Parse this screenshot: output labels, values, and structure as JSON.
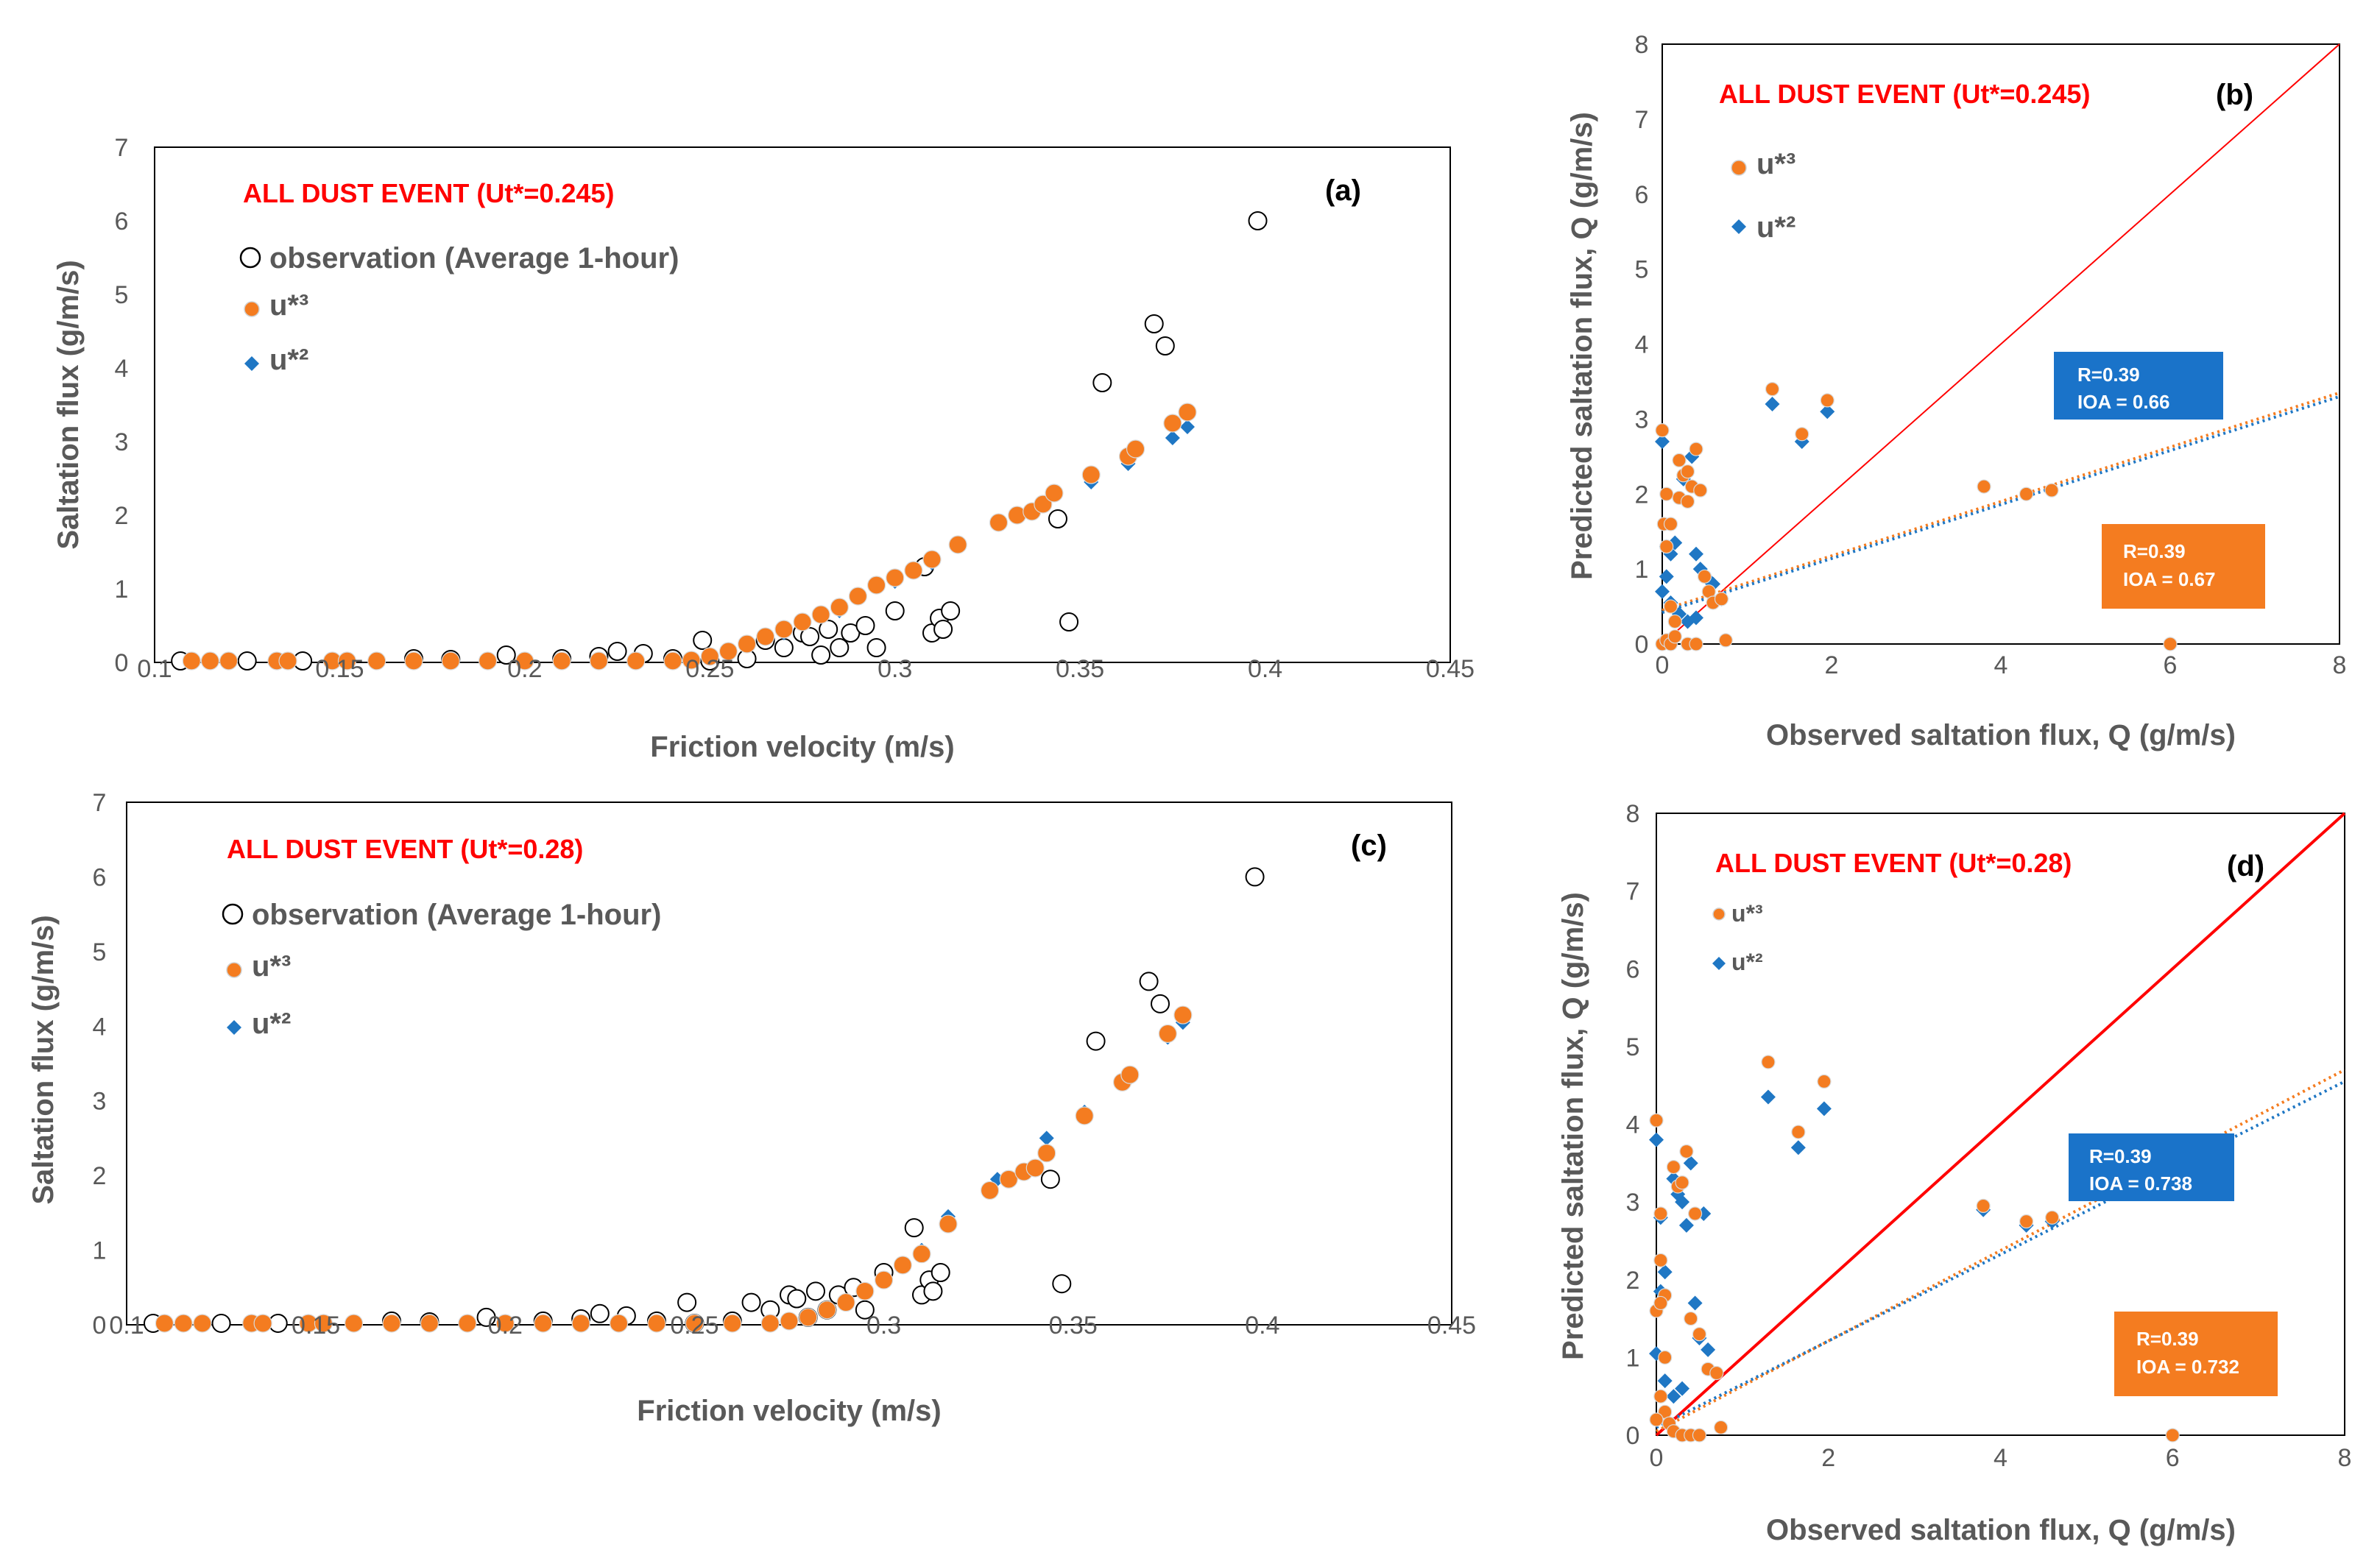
{
  "figure": {
    "colors": {
      "observation_edge": "#000000",
      "u3": "#f47c20",
      "u2": "#1f77c4",
      "one_to_one": "#ff0000",
      "stat_box_u2": "#1a73c9",
      "stat_box_u3": "#f47c20"
    },
    "legend": {
      "observation": "observation (Average 1-hour)",
      "u3": "u*³",
      "u2": "u*²"
    }
  },
  "chart_data": [
    {
      "panel": "(a)",
      "type": "scatter",
      "annotation": "ALL DUST EVENT (Ut*=0.245)",
      "xlabel": "Friction velocity (m/s)",
      "ylabel": "Saltation flux (g/m/s)",
      "xlim": [
        0.1,
        0.45
      ],
      "ylim": [
        0,
        7
      ],
      "xticks": [
        "0.1",
        "0.15",
        "0.2",
        "0.25",
        "0.3",
        "0.35",
        "0.4",
        "0.45"
      ],
      "yticks": [
        "0",
        "1",
        "2",
        "3",
        "4",
        "5",
        "6",
        "7"
      ],
      "series": [
        {
          "name": "observation (Average 1-hour)",
          "marker": "open-circle",
          "x": [
            0.107,
            0.125,
            0.14,
            0.17,
            0.18,
            0.195,
            0.21,
            0.22,
            0.225,
            0.232,
            0.24,
            0.248,
            0.25,
            0.26,
            0.265,
            0.27,
            0.275,
            0.277,
            0.28,
            0.282,
            0.285,
            0.288,
            0.292,
            0.295,
            0.3,
            0.308,
            0.31,
            0.312,
            0.313,
            0.315,
            0.344,
            0.347,
            0.356,
            0.37,
            0.373,
            0.398
          ],
          "y": [
            0.02,
            0.02,
            0.02,
            0.05,
            0.04,
            0.1,
            0.05,
            0.08,
            0.15,
            0.12,
            0.05,
            0.3,
            0.02,
            0.05,
            0.3,
            0.2,
            0.4,
            0.35,
            0.1,
            0.45,
            0.2,
            0.4,
            0.5,
            0.2,
            0.7,
            1.3,
            0.4,
            0.6,
            0.45,
            0.7,
            1.95,
            0.55,
            3.8,
            4.6,
            4.3,
            6.0
          ]
        },
        {
          "name": "u*³",
          "marker": "circle",
          "x": [
            0.11,
            0.115,
            0.12,
            0.133,
            0.136,
            0.148,
            0.152,
            0.16,
            0.17,
            0.18,
            0.19,
            0.2,
            0.21,
            0.22,
            0.23,
            0.24,
            0.245,
            0.25,
            0.255,
            0.26,
            0.265,
            0.27,
            0.275,
            0.28,
            0.285,
            0.29,
            0.295,
            0.3,
            0.305,
            0.31,
            0.317,
            0.328,
            0.333,
            0.337,
            0.34,
            0.343,
            0.353,
            0.363,
            0.365,
            0.375,
            0.379
          ],
          "y": [
            0.02,
            0.02,
            0.02,
            0.02,
            0.02,
            0.02,
            0.02,
            0.02,
            0.02,
            0.02,
            0.02,
            0.02,
            0.02,
            0.02,
            0.02,
            0.02,
            0.03,
            0.08,
            0.15,
            0.25,
            0.35,
            0.45,
            0.55,
            0.65,
            0.75,
            0.9,
            1.05,
            1.15,
            1.25,
            1.4,
            1.6,
            1.9,
            2.0,
            2.05,
            2.15,
            2.3,
            2.55,
            2.8,
            2.9,
            3.25,
            3.4
          ]
        },
        {
          "name": "u*²",
          "marker": "diamond",
          "x": [
            0.12,
            0.18,
            0.24,
            0.255,
            0.27,
            0.285,
            0.3,
            0.31,
            0.317,
            0.337,
            0.343,
            0.353,
            0.363,
            0.375,
            0.379
          ],
          "y": [
            0.02,
            0.02,
            0.02,
            0.12,
            0.4,
            0.7,
            1.1,
            1.35,
            1.6,
            2.05,
            2.3,
            2.45,
            2.7,
            3.05,
            3.2
          ]
        }
      ]
    },
    {
      "panel": "(b)",
      "type": "scatter",
      "annotation": "ALL DUST EVENT (Ut*=0.245)",
      "xlabel": "Observed saltation flux, Q (g/m/s)",
      "ylabel": "Predicted saltation flux, Q (g/m/s)",
      "xlim": [
        0,
        8
      ],
      "ylim": [
        0,
        8
      ],
      "xticks": [
        "0",
        "2",
        "4",
        "6",
        "8"
      ],
      "yticks": [
        "0",
        "1",
        "2",
        "3",
        "4",
        "5",
        "6",
        "7",
        "8"
      ],
      "stats_u2": {
        "r": "R=0.39",
        "ioa": "IOA = 0.66"
      },
      "stats_u3": {
        "r": "R=0.39",
        "ioa": "IOA = 0.67"
      },
      "trend_u3": [
        [
          0,
          0.45
        ],
        [
          8,
          3.35
        ]
      ],
      "trend_u2": [
        [
          0,
          0.42
        ],
        [
          8,
          3.3
        ]
      ],
      "series": [
        {
          "name": "u*³",
          "marker": "circle",
          "x": [
            0.0,
            0.02,
            0.05,
            0.05,
            0.1,
            0.1,
            0.15,
            0.2,
            0.25,
            0.3,
            0.35,
            0.4,
            0.45,
            0.5,
            0.55,
            0.6,
            0.7,
            0.75,
            0.0,
            0.05,
            0.1,
            0.15,
            0.3,
            0.4,
            1.3,
            1.65,
            1.95,
            3.8,
            4.3,
            4.6,
            6.0,
            0.2,
            0.3
          ],
          "y": [
            2.85,
            1.6,
            2.0,
            1.3,
            1.6,
            0.5,
            0.3,
            1.95,
            2.25,
            1.9,
            2.1,
            2.6,
            2.05,
            0.9,
            0.7,
            0.55,
            0.6,
            0.05,
            0.0,
            0.05,
            0.0,
            0.1,
            0.0,
            0.0,
            3.4,
            2.8,
            3.25,
            2.1,
            2.0,
            2.05,
            0.0,
            2.45,
            2.3
          ]
        },
        {
          "name": "u*²",
          "marker": "diamond",
          "x": [
            0.0,
            0.05,
            0.1,
            0.15,
            0.25,
            0.35,
            0.4,
            0.45,
            0.55,
            0.6,
            0.7,
            0.0,
            0.1,
            0.2,
            0.3,
            0.4,
            1.3,
            1.65,
            1.95,
            0.05
          ],
          "y": [
            2.7,
            1.3,
            1.2,
            1.35,
            2.2,
            2.5,
            1.2,
            1.0,
            0.85,
            0.8,
            0.6,
            0.7,
            0.55,
            0.4,
            0.3,
            0.35,
            3.2,
            2.7,
            3.1,
            0.9
          ]
        }
      ]
    },
    {
      "panel": "(c)",
      "type": "scatter",
      "annotation": "ALL DUST EVENT (Ut*=0.28)",
      "xlabel": "Friction velocity (m/s)",
      "ylabel": "Saltation flux (g/m/s)",
      "xlim": [
        0.1,
        0.45
      ],
      "ylim": [
        0,
        7
      ],
      "xticks": [
        "0.1",
        "0.15",
        "0.2",
        "0.25",
        "0.3",
        "0.35",
        "0.4",
        "0.45"
      ],
      "yticks": [
        "0",
        "1",
        "2",
        "3",
        "4",
        "5",
        "6",
        "7"
      ],
      "series": [
        {
          "name": "observation (Average 1-hour)",
          "marker": "open-circle",
          "x": [
            0.107,
            0.125,
            0.14,
            0.17,
            0.18,
            0.195,
            0.21,
            0.22,
            0.225,
            0.232,
            0.24,
            0.248,
            0.25,
            0.26,
            0.265,
            0.27,
            0.275,
            0.277,
            0.28,
            0.282,
            0.285,
            0.288,
            0.292,
            0.295,
            0.3,
            0.308,
            0.31,
            0.312,
            0.313,
            0.315,
            0.344,
            0.347,
            0.356,
            0.37,
            0.373,
            0.398
          ],
          "y": [
            0.02,
            0.02,
            0.02,
            0.05,
            0.04,
            0.1,
            0.05,
            0.08,
            0.15,
            0.12,
            0.05,
            0.3,
            0.02,
            0.05,
            0.3,
            0.2,
            0.4,
            0.35,
            0.1,
            0.45,
            0.2,
            0.4,
            0.5,
            0.2,
            0.7,
            1.3,
            0.4,
            0.6,
            0.45,
            0.7,
            1.95,
            0.55,
            3.8,
            4.6,
            4.3,
            6.0
          ]
        },
        {
          "name": "u*³",
          "marker": "circle",
          "x": [
            0.11,
            0.115,
            0.12,
            0.133,
            0.136,
            0.148,
            0.152,
            0.16,
            0.17,
            0.18,
            0.19,
            0.2,
            0.21,
            0.22,
            0.23,
            0.24,
            0.25,
            0.26,
            0.27,
            0.275,
            0.28,
            0.285,
            0.29,
            0.295,
            0.3,
            0.305,
            0.31,
            0.317,
            0.328,
            0.333,
            0.337,
            0.34,
            0.343,
            0.353,
            0.363,
            0.365,
            0.375,
            0.379
          ],
          "y": [
            0.02,
            0.02,
            0.02,
            0.02,
            0.02,
            0.02,
            0.02,
            0.02,
            0.02,
            0.02,
            0.02,
            0.02,
            0.02,
            0.02,
            0.02,
            0.02,
            0.02,
            0.02,
            0.02,
            0.05,
            0.1,
            0.2,
            0.3,
            0.45,
            0.6,
            0.8,
            0.95,
            1.35,
            1.8,
            1.95,
            2.05,
            2.1,
            2.3,
            2.8,
            3.25,
            3.35,
            3.9,
            4.15
          ]
        },
        {
          "name": "u*²",
          "marker": "diamond",
          "x": [
            0.12,
            0.2,
            0.27,
            0.3,
            0.31,
            0.317,
            0.33,
            0.343,
            0.353,
            0.365,
            0.375,
            0.379
          ],
          "y": [
            0.02,
            0.02,
            0.02,
            0.6,
            1.0,
            1.45,
            1.95,
            2.5,
            2.85,
            3.3,
            3.85,
            4.05
          ]
        }
      ]
    },
    {
      "panel": "(d)",
      "type": "scatter",
      "annotation": "ALL DUST EVENT (Ut*=0.28)",
      "xlabel": "Observed saltation flux, Q (g/m/s)",
      "ylabel": "Predicted saltation flux, Q (g/m/s)",
      "xlim": [
        0,
        8
      ],
      "ylim": [
        0,
        8
      ],
      "xticks": [
        "0",
        "2",
        "4",
        "6",
        "8"
      ],
      "yticks": [
        "0",
        "1",
        "2",
        "3",
        "4",
        "5",
        "6",
        "7",
        "8"
      ],
      "stats_u2": {
        "r": "R=0.39",
        "ioa": "IOA = 0.738"
      },
      "stats_u3": {
        "r": "R=0.39",
        "ioa": "IOA = 0.732"
      },
      "trend_u3": [
        [
          0,
          0.05
        ],
        [
          8,
          4.7
        ]
      ],
      "trend_u2": [
        [
          0,
          0.1
        ],
        [
          8,
          4.55
        ]
      ],
      "series": [
        {
          "name": "u*³",
          "marker": "circle",
          "x": [
            0.0,
            0.0,
            0.05,
            0.05,
            0.1,
            0.1,
            0.2,
            0.25,
            0.3,
            0.35,
            0.4,
            0.45,
            0.5,
            0.6,
            0.7,
            0.05,
            0.1,
            0.15,
            0.2,
            0.3,
            0.4,
            0.5,
            0.75,
            1.3,
            1.65,
            1.95,
            3.8,
            4.3,
            4.6,
            6.0,
            0.0,
            0.05
          ],
          "y": [
            4.05,
            1.6,
            2.85,
            2.25,
            1.8,
            1.0,
            3.45,
            3.2,
            3.25,
            3.65,
            1.5,
            2.85,
            1.3,
            0.85,
            0.8,
            0.5,
            0.3,
            0.15,
            0.05,
            0.0,
            0.0,
            0.0,
            0.1,
            4.8,
            3.9,
            4.55,
            2.95,
            2.75,
            2.8,
            0.0,
            0.2,
            1.7
          ]
        },
        {
          "name": "u*²",
          "marker": "diamond",
          "x": [
            0.0,
            0.05,
            0.1,
            0.2,
            0.3,
            0.35,
            0.4,
            0.45,
            0.5,
            0.55,
            0.6,
            0.0,
            0.1,
            0.2,
            0.3,
            1.3,
            1.65,
            1.95,
            3.8,
            4.3,
            4.6,
            0.05,
            0.25
          ],
          "y": [
            3.8,
            2.8,
            2.1,
            3.3,
            3.0,
            2.7,
            3.5,
            1.7,
            1.25,
            2.85,
            1.1,
            1.05,
            0.7,
            0.5,
            0.6,
            4.35,
            3.7,
            4.2,
            2.9,
            2.7,
            2.75,
            1.85,
            3.1
          ]
        }
      ]
    }
  ]
}
